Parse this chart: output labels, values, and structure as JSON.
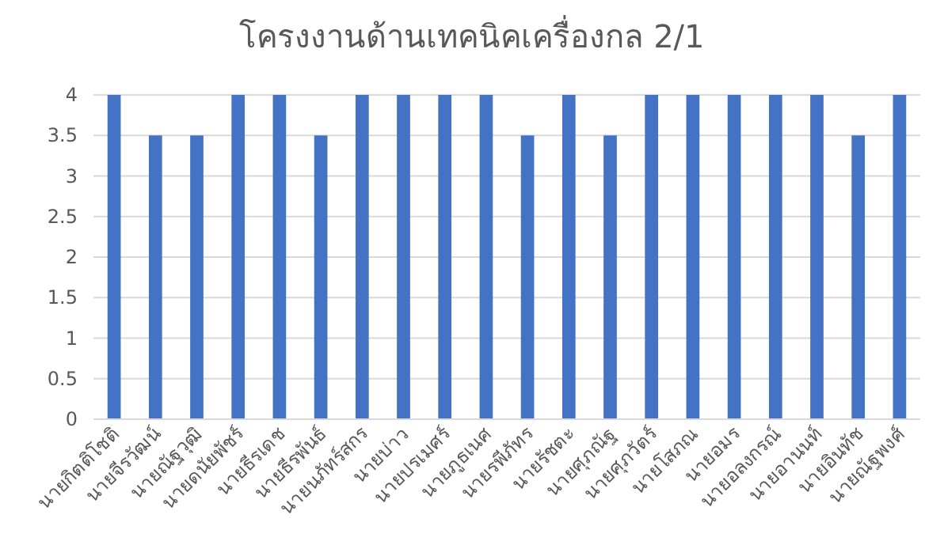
{
  "chart_data": {
    "type": "bar",
    "title": "โครงงานด้านเทคนิคเครื่องกล 2/1",
    "categories": [
      "นายกิตติโชติ",
      "นายจีรวัฒน์",
      "นายณัฐวุฒิ",
      "นายดนัยพัชร์",
      "นายธีรเดช",
      "นายธีรพันธ์",
      "นายนภัทร์สกร",
      "นายบ่าว",
      "นายปรเมศร์",
      "นายภูธเนศ",
      "นายรพีภัทร",
      "นายรัชตะ",
      "นายศุภณัฐ",
      "นายศุภวัตร์",
      "นายโสภณ",
      "นายอมร",
      "นายอลงกรณ์",
      "นายอานนท์",
      "นายอินทัช",
      "นายณัฐพงศ์"
    ],
    "values": [
      4,
      3.5,
      3.5,
      4,
      4,
      3.5,
      4,
      4,
      4,
      4,
      3.5,
      4,
      3.5,
      4,
      4,
      4,
      4,
      4,
      3.5,
      4
    ],
    "color": "#4472c4",
    "ylim": [
      0,
      4
    ],
    "yticks": [
      0,
      0.5,
      1,
      1.5,
      2,
      2.5,
      3,
      3.5,
      4
    ],
    "grid": "y"
  }
}
